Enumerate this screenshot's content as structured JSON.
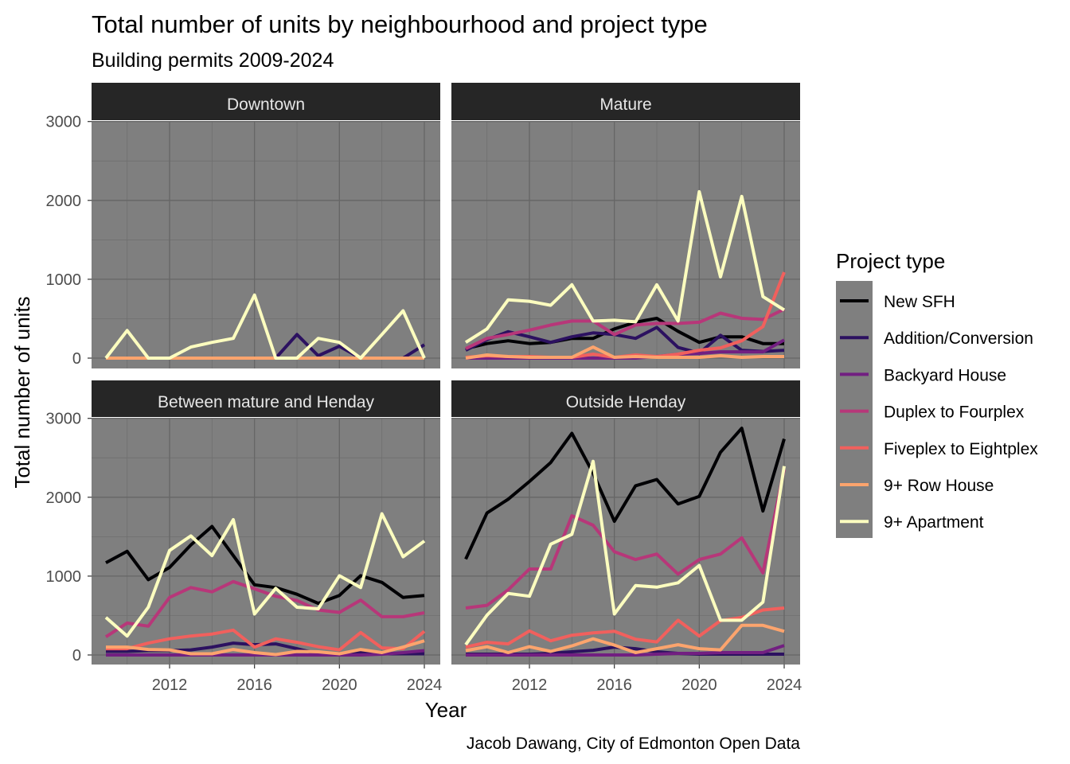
{
  "chart_data": {
    "type": "line",
    "title": "Total number of units by neighbourhood and project type",
    "subtitle": "Building permits 2009-2024",
    "xlabel": "Year",
    "ylabel": "Total number of units",
    "caption": "Jacob Dawang, City of Edmonton Open Data",
    "x": [
      2009,
      2010,
      2011,
      2012,
      2013,
      2014,
      2015,
      2016,
      2017,
      2018,
      2019,
      2020,
      2021,
      2022,
      2023,
      2024
    ],
    "x_ticks": [
      "2012",
      "2016",
      "2020",
      "2024"
    ],
    "y_ticks": [
      "0",
      "1000",
      "2000",
      "3000"
    ],
    "ylim": [
      0,
      3000
    ],
    "grid": true,
    "legend": {
      "title": "Project type",
      "placement": "right",
      "entries": [
        "New SFH",
        "Addition/Conversion",
        "Backyard House",
        "Duplex to Fourplex",
        "Fiveplex to Eightplex",
        "9+ Row House",
        "9+ Apartment"
      ]
    },
    "colors": {
      "New SFH": "#000004",
      "Addition/Conversion": "#2c1160",
      "Backyard House": "#721f81",
      "Duplex to Fourplex": "#b73779",
      "Fiveplex to Eightplex": "#f1605d",
      "9+ Row House": "#fca46d",
      "9+ Apartment": "#fcfdbf",
      "panel_bg": "#7f7f7f",
      "strip_bg": "#262626"
    },
    "panels": [
      {
        "name": "Downtown",
        "series": [
          {
            "name": "New SFH",
            "values": [
              0,
              0,
              0,
              0,
              0,
              0,
              0,
              0,
              0,
              0,
              0,
              0,
              0,
              0,
              0,
              0
            ]
          },
          {
            "name": "Addition/Conversion",
            "values": [
              0,
              0,
              0,
              0,
              0,
              0,
              0,
              0,
              0,
              300,
              30,
              150,
              0,
              0,
              0,
              170
            ]
          },
          {
            "name": "Backyard House",
            "values": [
              0,
              0,
              0,
              0,
              0,
              0,
              0,
              0,
              0,
              0,
              0,
              0,
              0,
              0,
              0,
              0
            ]
          },
          {
            "name": "Duplex to Fourplex",
            "values": [
              0,
              0,
              0,
              0,
              0,
              0,
              0,
              0,
              0,
              0,
              0,
              0,
              0,
              0,
              0,
              0
            ]
          },
          {
            "name": "Fiveplex to Eightplex",
            "values": [
              0,
              0,
              0,
              0,
              0,
              0,
              0,
              0,
              0,
              0,
              0,
              0,
              0,
              0,
              0,
              0
            ]
          },
          {
            "name": "9+ Row House",
            "values": [
              0,
              0,
              0,
              0,
              0,
              0,
              0,
              0,
              0,
              0,
              0,
              0,
              0,
              0,
              0,
              0
            ]
          },
          {
            "name": "9+ Apartment",
            "values": [
              0,
              350,
              0,
              0,
              140,
              200,
              250,
              800,
              0,
              0,
              250,
              200,
              0,
              300,
              600,
              0
            ]
          }
        ]
      },
      {
        "name": "Mature",
        "series": [
          {
            "name": "New SFH",
            "values": [
              120,
              185,
              220,
              185,
              200,
              250,
              250,
              370,
              455,
              505,
              340,
              200,
              270,
              270,
              185,
              185
            ]
          },
          {
            "name": "Addition/Conversion",
            "values": [
              100,
              235,
              335,
              270,
              200,
              270,
              320,
              300,
              250,
              390,
              135,
              65,
              290,
              100,
              85,
              100
            ]
          },
          {
            "name": "Backyard House",
            "values": [
              0,
              0,
              0,
              0,
              0,
              0,
              0,
              0,
              0,
              20,
              50,
              60,
              80,
              80,
              80,
              230
            ]
          },
          {
            "name": "Duplex to Fourplex",
            "values": [
              120,
              250,
              300,
              355,
              420,
              470,
              470,
              300,
              420,
              440,
              440,
              455,
              570,
              505,
              490,
              620
            ]
          },
          {
            "name": "Fiveplex to Eightplex",
            "values": [
              10,
              30,
              20,
              20,
              10,
              10,
              50,
              10,
              40,
              20,
              50,
              100,
              130,
              220,
              400,
              1090
            ]
          },
          {
            "name": "9+ Row House",
            "values": [
              0,
              40,
              20,
              10,
              10,
              10,
              140,
              10,
              20,
              10,
              10,
              10,
              30,
              10,
              20,
              20
            ]
          },
          {
            "name": "9+ Apartment",
            "values": [
              200,
              370,
              740,
              720,
              670,
              930,
              470,
              480,
              460,
              930,
              470,
              2110,
              1030,
              2050,
              780,
              610
            ]
          }
        ]
      },
      {
        "name": "Between mature and Henday",
        "series": [
          {
            "name": "New SFH",
            "values": [
              1170,
              1315,
              955,
              1110,
              1395,
              1630,
              1260,
              890,
              855,
              770,
              655,
              755,
              1005,
              920,
              730,
              755
            ]
          },
          {
            "name": "Addition/Conversion",
            "values": [
              45,
              45,
              55,
              55,
              65,
              100,
              150,
              130,
              140,
              80,
              15,
              0,
              30,
              15,
              15,
              15
            ]
          },
          {
            "name": "Backyard House",
            "values": [
              0,
              0,
              0,
              0,
              0,
              0,
              0,
              0,
              0,
              0,
              0,
              0,
              0,
              10,
              30,
              55
            ]
          },
          {
            "name": "Duplex to Fourplex",
            "values": [
              230,
              405,
              365,
              730,
              855,
              800,
              930,
              840,
              745,
              690,
              570,
              540,
              695,
              485,
              485,
              535
            ]
          },
          {
            "name": "Fiveplex to Eightplex",
            "values": [
              80,
              80,
              150,
              205,
              240,
              265,
              315,
              100,
              205,
              160,
              105,
              65,
              285,
              90,
              80,
              300
            ]
          },
          {
            "name": "9+ Row House",
            "values": [
              100,
              100,
              70,
              65,
              15,
              15,
              70,
              30,
              5,
              45,
              40,
              15,
              70,
              30,
              100,
              180
            ]
          },
          {
            "name": "9+ Apartment",
            "values": [
              475,
              240,
              605,
              1325,
              1510,
              1260,
              1715,
              520,
              845,
              605,
              585,
              1005,
              855,
              1790,
              1245,
              1445
            ]
          }
        ]
      },
      {
        "name": "Outside Henday",
        "series": [
          {
            "name": "New SFH",
            "values": [
              1215,
              1800,
              1975,
              2200,
              2440,
              2810,
              2305,
              1695,
              2145,
              2225,
              1915,
              2010,
              2570,
              2875,
              1825,
              2740
            ]
          },
          {
            "name": "Addition/Conversion",
            "values": [
              10,
              10,
              10,
              10,
              20,
              40,
              60,
              100,
              80,
              40,
              20,
              10,
              10,
              10,
              10,
              10
            ]
          },
          {
            "name": "Backyard House",
            "values": [
              0,
              0,
              0,
              0,
              0,
              0,
              0,
              0,
              0,
              10,
              20,
              20,
              30,
              30,
              30,
              120
            ]
          },
          {
            "name": "Duplex to Fourplex",
            "values": [
              595,
              630,
              825,
              1090,
              1090,
              1765,
              1645,
              1310,
              1210,
              1280,
              1025,
              1210,
              1280,
              1485,
              1040,
              2355
            ]
          },
          {
            "name": "Fiveplex to Eightplex",
            "values": [
              100,
              160,
              140,
              305,
              180,
              250,
              280,
              300,
              200,
              165,
              440,
              240,
              435,
              475,
              570,
              595
            ]
          },
          {
            "name": "9+ Row House",
            "values": [
              55,
              105,
              30,
              105,
              45,
              115,
              205,
              125,
              30,
              80,
              130,
              80,
              65,
              375,
              375,
              300
            ]
          },
          {
            "name": "9+ Apartment",
            "values": [
              130,
              505,
              780,
              745,
              1405,
              1530,
              2455,
              520,
              880,
              860,
              915,
              1135,
              440,
              440,
              670,
              2395
            ]
          }
        ]
      }
    ]
  }
}
